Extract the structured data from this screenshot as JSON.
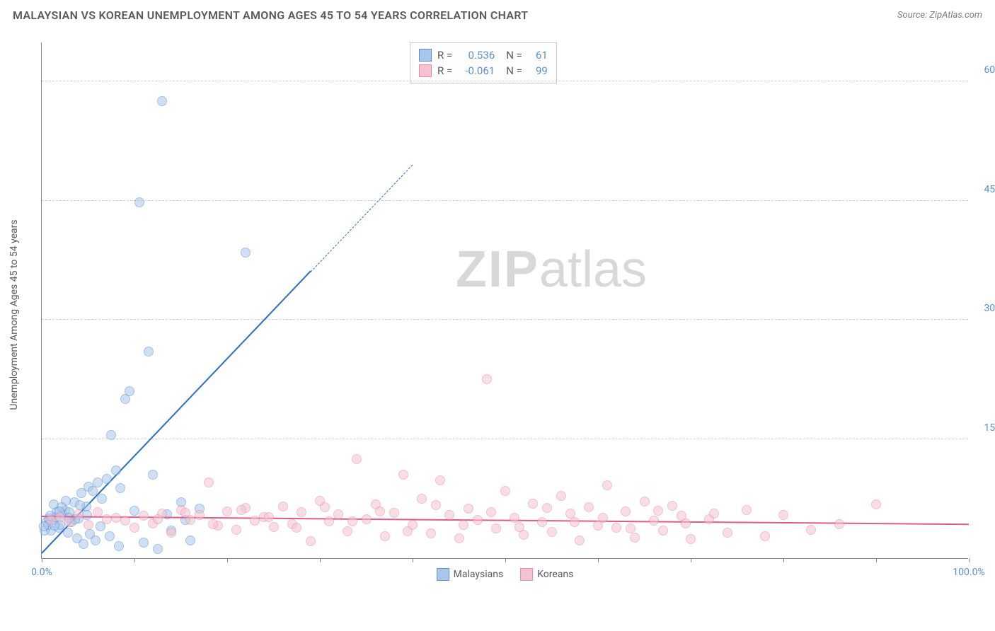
{
  "title": "MALAYSIAN VS KOREAN UNEMPLOYMENT AMONG AGES 45 TO 54 YEARS CORRELATION CHART",
  "source_label": "Source: ZipAtlas.com",
  "y_axis_label": "Unemployment Among Ages 45 to 54 years",
  "watermark_zip": "ZIP",
  "watermark_atlas": "atlas",
  "chart": {
    "type": "scatter",
    "background_color": "#ffffff",
    "grid_color": "#d0d0d0",
    "axis_color": "#888888",
    "text_color": "#5a5a5a",
    "tick_label_color": "#5a8fd6",
    "title_fontsize": 16,
    "label_fontsize": 14,
    "xlim": [
      0,
      100
    ],
    "ylim": [
      0,
      65
    ],
    "x_ticks": [
      0,
      10,
      20,
      30,
      40,
      50,
      60,
      70,
      80,
      90,
      100
    ],
    "x_tick_labels": {
      "0": "0.0%",
      "100": "100.0%"
    },
    "y_gridlines": [
      15,
      30,
      45,
      60
    ],
    "y_tick_labels": {
      "15": "15.0%",
      "30": "30.0%",
      "45": "45.0%",
      "60": "60.0%"
    },
    "marker_radius": 7,
    "marker_opacity": 0.55,
    "series": [
      {
        "name": "Malaysians",
        "color_fill": "#a9c7ea",
        "color_stroke": "#5a8fd6",
        "trend_color": "#2d6cc0",
        "R": "0.536",
        "N": "61",
        "trend": {
          "x1": 0,
          "y1": 0.5,
          "x2": 29,
          "y2": 36,
          "dash_x2": 40,
          "dash_y2": 49.5
        },
        "points": [
          [
            0.5,
            4.5
          ],
          [
            0.8,
            5
          ],
          [
            1,
            3.5
          ],
          [
            1.2,
            4.8
          ],
          [
            1.5,
            5.2
          ],
          [
            1.8,
            3.8
          ],
          [
            2,
            4.2
          ],
          [
            2.2,
            5.5
          ],
          [
            2.5,
            6
          ],
          [
            2.8,
            3.2
          ],
          [
            3,
            5.8
          ],
          [
            3.2,
            4.5
          ],
          [
            3.5,
            7
          ],
          [
            3.8,
            2.5
          ],
          [
            4,
            5
          ],
          [
            4.3,
            8.2
          ],
          [
            4.5,
            1.8
          ],
          [
            4.8,
            6.5
          ],
          [
            5,
            9
          ],
          [
            5.2,
            3
          ],
          [
            5.5,
            8.5
          ],
          [
            5.8,
            2.2
          ],
          [
            6,
            9.5
          ],
          [
            6.3,
            4
          ],
          [
            6.5,
            7.5
          ],
          [
            7,
            10
          ],
          [
            7.3,
            2.8
          ],
          [
            7.5,
            15.5
          ],
          [
            8,
            11
          ],
          [
            8.3,
            1.5
          ],
          [
            8.5,
            8.8
          ],
          [
            9,
            20
          ],
          [
            9.5,
            21
          ],
          [
            10,
            6
          ],
          [
            10.5,
            44.8
          ],
          [
            11,
            2
          ],
          [
            11.5,
            26
          ],
          [
            12,
            10.5
          ],
          [
            12.5,
            1.2
          ],
          [
            13,
            57.5
          ],
          [
            13.5,
            5.5
          ],
          [
            14,
            3.5
          ],
          [
            15,
            7
          ],
          [
            15.5,
            4.8
          ],
          [
            16,
            2.2
          ],
          [
            17,
            6.2
          ],
          [
            1.3,
            6.8
          ],
          [
            2.6,
            7.2
          ],
          [
            0.3,
            3.5
          ],
          [
            0.7,
            4.2
          ],
          [
            1.6,
            5.8
          ],
          [
            2.1,
            6.4
          ],
          [
            2.9,
            5.1
          ],
          [
            3.6,
            4.9
          ],
          [
            4.1,
            6.7
          ],
          [
            4.9,
            5.4
          ],
          [
            22,
            38.5
          ],
          [
            0.2,
            4
          ],
          [
            0.9,
            5.3
          ],
          [
            1.4,
            4.1
          ],
          [
            1.9,
            5.9
          ]
        ]
      },
      {
        "name": "Koreans",
        "color_fill": "#f5c3d0",
        "color_stroke": "#e88ba8",
        "trend_color": "#e05a8a",
        "R": "-0.061",
        "N": "99",
        "trend": {
          "x1": 0,
          "y1": 5.2,
          "x2": 100,
          "y2": 4.2
        },
        "points": [
          [
            1,
            4.8
          ],
          [
            2,
            5.2
          ],
          [
            3,
            4.5
          ],
          [
            4,
            5.5
          ],
          [
            5,
            4.2
          ],
          [
            6,
            5.8
          ],
          [
            7,
            4.9
          ],
          [
            8,
            5.1
          ],
          [
            9,
            4.7
          ],
          [
            10,
            3.8
          ],
          [
            11,
            5.3
          ],
          [
            12,
            4.4
          ],
          [
            13,
            5.6
          ],
          [
            14,
            3.2
          ],
          [
            15,
            6.1
          ],
          [
            16,
            4.8
          ],
          [
            17,
            5.4
          ],
          [
            18,
            9.5
          ],
          [
            19,
            4.1
          ],
          [
            20,
            5.9
          ],
          [
            21,
            3.6
          ],
          [
            22,
            6.3
          ],
          [
            23,
            4.7
          ],
          [
            24,
            5.2
          ],
          [
            25,
            3.9
          ],
          [
            26,
            6.5
          ],
          [
            27,
            4.3
          ],
          [
            28,
            5.8
          ],
          [
            29,
            2.1
          ],
          [
            30,
            7.2
          ],
          [
            31,
            4.6
          ],
          [
            32,
            5.5
          ],
          [
            33,
            3.4
          ],
          [
            34,
            12.5
          ],
          [
            35,
            4.9
          ],
          [
            36,
            6.8
          ],
          [
            37,
            2.8
          ],
          [
            38,
            5.7
          ],
          [
            39,
            10.5
          ],
          [
            40,
            4.2
          ],
          [
            41,
            7.5
          ],
          [
            42,
            3.1
          ],
          [
            43,
            9.8
          ],
          [
            44,
            5.4
          ],
          [
            45,
            2.5
          ],
          [
            46,
            6.2
          ],
          [
            47,
            4.8
          ],
          [
            48,
            22.5
          ],
          [
            49,
            3.7
          ],
          [
            50,
            8.5
          ],
          [
            51,
            5.1
          ],
          [
            52,
            2.9
          ],
          [
            53,
            6.9
          ],
          [
            54,
            4.5
          ],
          [
            55,
            3.3
          ],
          [
            56,
            7.8
          ],
          [
            57,
            5.6
          ],
          [
            58,
            2.2
          ],
          [
            59,
            6.4
          ],
          [
            60,
            4.1
          ],
          [
            61,
            9.2
          ],
          [
            62,
            3.8
          ],
          [
            63,
            5.9
          ],
          [
            64,
            2.6
          ],
          [
            65,
            7.1
          ],
          [
            66,
            4.7
          ],
          [
            67,
            3.5
          ],
          [
            68,
            6.6
          ],
          [
            69,
            5.3
          ],
          [
            70,
            2.4
          ],
          [
            72,
            4.9
          ],
          [
            74,
            3.2
          ],
          [
            76,
            6.1
          ],
          [
            78,
            2.8
          ],
          [
            80,
            5.4
          ],
          [
            83,
            3.6
          ],
          [
            86,
            4.3
          ],
          [
            90,
            6.8
          ],
          [
            12.5,
            4.9
          ],
          [
            15.5,
            5.7
          ],
          [
            18.5,
            4.3
          ],
          [
            21.5,
            6.1
          ],
          [
            24.5,
            5.2
          ],
          [
            27.5,
            3.8
          ],
          [
            30.5,
            6.4
          ],
          [
            33.5,
            4.6
          ],
          [
            36.5,
            5.9
          ],
          [
            39.5,
            3.4
          ],
          [
            42.5,
            6.7
          ],
          [
            45.5,
            4.2
          ],
          [
            48.5,
            5.8
          ],
          [
            51.5,
            3.9
          ],
          [
            54.5,
            6.3
          ],
          [
            57.5,
            4.5
          ],
          [
            60.5,
            5.1
          ],
          [
            63.5,
            3.7
          ],
          [
            66.5,
            6.0
          ],
          [
            69.5,
            4.4
          ],
          [
            72.5,
            5.6
          ]
        ]
      }
    ]
  },
  "stats_box": {
    "r_label": "R  =",
    "n_label": "N  ="
  },
  "legend": {
    "items": [
      "Malaysians",
      "Koreans"
    ]
  }
}
